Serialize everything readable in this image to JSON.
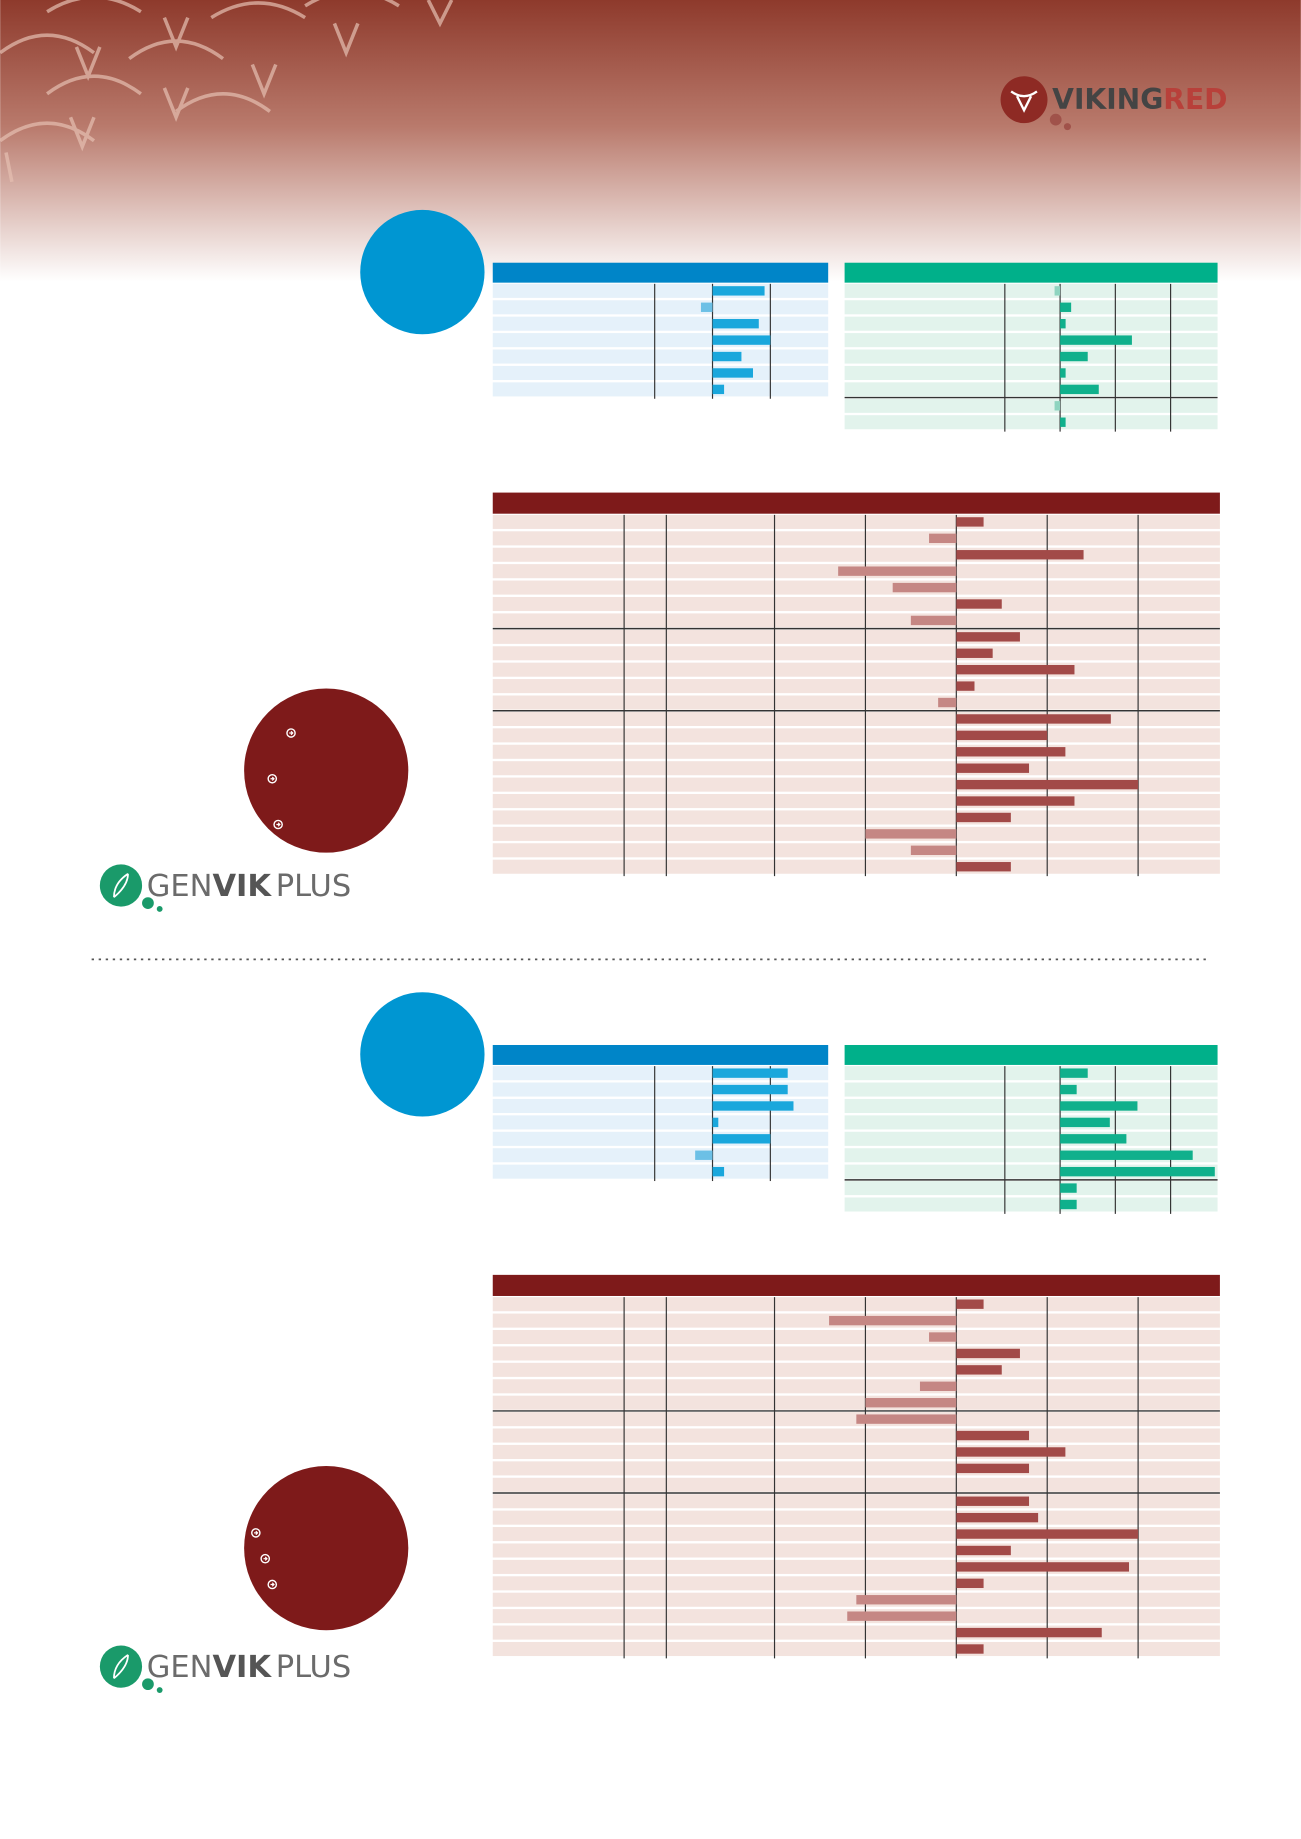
{
  "header": {
    "logo": [
      "VIKING",
      "RED"
    ]
  },
  "sections": [
    {
      "blue": {
        "type": "bar",
        "color": "#1aa7dc",
        "negative_color": "#6cc0e6",
        "xlim": [
          -38,
          20
        ],
        "xticks": [
          -10,
          0,
          10
        ],
        "groups": [
          [
            9,
            -2,
            8,
            10,
            5,
            7,
            2
          ]
        ]
      },
      "green": {
        "type": "bar",
        "color": "#10b08c",
        "negative_color": "#8fd4c0",
        "xlim": [
          -39,
          28.5
        ],
        "xticks": [
          -10,
          0,
          10,
          20
        ],
        "groups": [
          [
            -1,
            2,
            1,
            13,
            5,
            1,
            7
          ],
          [
            -1,
            1
          ]
        ]
      },
      "red": {
        "type": "bar",
        "color": "#a24a48",
        "negative_color": "#c58784",
        "xlim": [
          -51,
          29
        ],
        "xticks": [
          -20,
          -10,
          0,
          10,
          20
        ],
        "groups": [
          [
            3,
            -3,
            14,
            -13,
            -7,
            5,
            -5
          ],
          [
            7,
            4,
            13,
            2,
            -2
          ],
          [
            17,
            10,
            12,
            8,
            20,
            13,
            6,
            -10,
            -5,
            6
          ]
        ]
      },
      "logo": [
        "GEN",
        "VIK",
        "PLUS"
      ]
    },
    {
      "blue": {
        "type": "bar",
        "color": "#1aa7dc",
        "negative_color": "#6cc0e6",
        "xlim": [
          -38,
          20
        ],
        "xticks": [
          -10,
          0,
          10
        ],
        "groups": [
          [
            13,
            13,
            14,
            1,
            10,
            -3,
            2
          ]
        ]
      },
      "green": {
        "type": "bar",
        "color": "#10b08c",
        "negative_color": "#8fd4c0",
        "xlim": [
          -39,
          28.5
        ],
        "xticks": [
          -10,
          0,
          10,
          20
        ],
        "groups": [
          [
            5,
            3,
            14,
            9,
            12,
            24,
            28
          ],
          [
            3,
            3
          ]
        ]
      },
      "red": {
        "type": "bar",
        "color": "#a24a48",
        "negative_color": "#c58784",
        "xlim": [
          -51,
          29
        ],
        "xticks": [
          -20,
          -10,
          0,
          10,
          20
        ],
        "groups": [
          [
            3,
            -14,
            -3,
            7,
            5,
            -4,
            -10
          ],
          [
            -11,
            8,
            12,
            8,
            null
          ],
          [
            8,
            9,
            20,
            6,
            19,
            3,
            -11,
            -12,
            16,
            3
          ]
        ]
      },
      "logo": [
        "GEN",
        "VIK",
        "PLUS"
      ]
    }
  ]
}
